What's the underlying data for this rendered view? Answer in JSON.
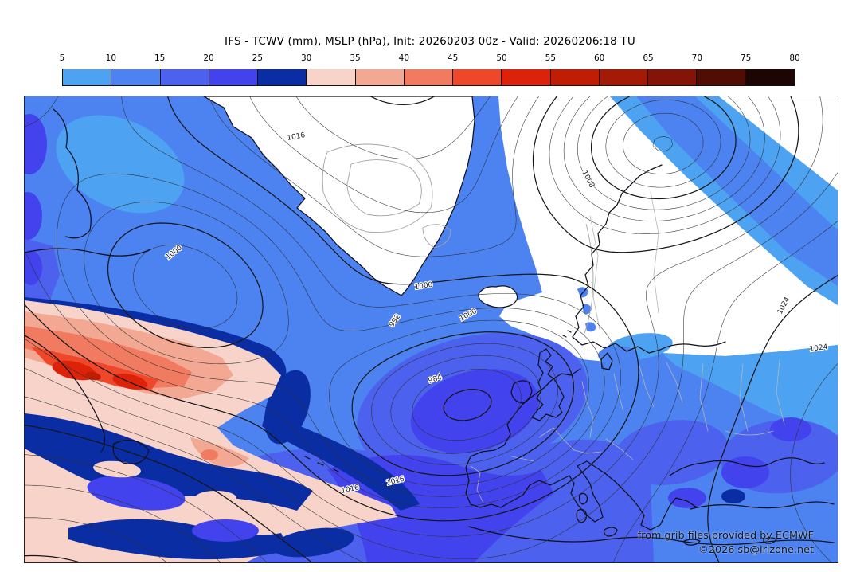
{
  "title": "IFS - TCWV (mm), MSLP (hPa), Init: 20260203 00z - Valid: 20260206:18 TU",
  "colorbar": {
    "unit": "mm",
    "ticks": [
      "5",
      "10",
      "15",
      "20",
      "25",
      "30",
      "35",
      "40",
      "45",
      "50",
      "55",
      "60",
      "65",
      "70",
      "75",
      "80"
    ],
    "segments": [
      {
        "range": "5-10",
        "color": "#4da3f2"
      },
      {
        "range": "10-15",
        "color": "#4c83f0"
      },
      {
        "range": "15-20",
        "color": "#4c62ee"
      },
      {
        "range": "20-25",
        "color": "#4343ee"
      },
      {
        "range": "25-30",
        "color": "#0b2da3"
      },
      {
        "range": "30-35",
        "color": "#f8d3ca"
      },
      {
        "range": "35-40",
        "color": "#f3a894"
      },
      {
        "range": "40-45",
        "color": "#f07b60"
      },
      {
        "range": "45-50",
        "color": "#ef472a"
      },
      {
        "range": "50-55",
        "color": "#dc230a"
      },
      {
        "range": "55-60",
        "color": "#c01d05"
      },
      {
        "range": "60-65",
        "color": "#a31a07"
      },
      {
        "range": "65-70",
        "color": "#851408"
      },
      {
        "range": "70-75",
        "color": "#500d04"
      },
      {
        "range": "75-80",
        "color": "#1d0503"
      }
    ]
  },
  "map": {
    "isobar_labels": [
      {
        "value": "1016"
      },
      {
        "value": "1000"
      },
      {
        "value": "1000"
      },
      {
        "value": "1000"
      },
      {
        "value": "992"
      },
      {
        "value": "984"
      },
      {
        "value": "1008"
      },
      {
        "value": "1024"
      },
      {
        "value": "1024"
      },
      {
        "value": "1016"
      },
      {
        "value": "1016"
      }
    ],
    "attribution_line1": "from grib files provided by ECMWF",
    "attribution_line2": "©2026 sb@irizone.net"
  },
  "chart_data": {
    "type": "heatmap",
    "title": "IFS - TCWV (mm), MSLP (hPa), Init: 20260203 00z - Valid: 20260206:18 TU",
    "variable": "Total column water vapour (mm) shaded, mean sea level pressure (hPa) contours",
    "colorbar_levels_mm": [
      5,
      10,
      15,
      20,
      25,
      30,
      35,
      40,
      45,
      50,
      55,
      60,
      65,
      70,
      75,
      80
    ],
    "colorbar_colors": [
      "#4da3f2",
      "#4c83f0",
      "#4c62ee",
      "#4343ee",
      "#0b2da3",
      "#f8d3ca",
      "#f3a894",
      "#f07b60",
      "#ef472a",
      "#dc230a",
      "#c01d05",
      "#a31a07",
      "#851408",
      "#500d04",
      "#1d0503"
    ],
    "isobar_labels_hpa": [
      1016,
      1000,
      992,
      984,
      1008,
      1024
    ],
    "legend_position": "top",
    "region": "North Atlantic / Europe"
  }
}
